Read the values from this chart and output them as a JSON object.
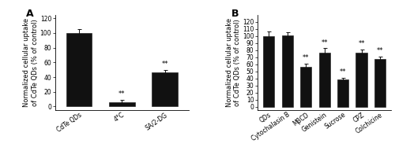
{
  "panel_A": {
    "categories": [
      "CdTe QDs",
      "4°C",
      "SA/2-DG"
    ],
    "values": [
      100,
      6,
      46
    ],
    "errors": [
      5,
      3,
      4
    ],
    "sig": [
      false,
      true,
      true
    ],
    "bar_color": "#111111",
    "ylabel": "Normalized cellular uptake\nof CdTe QDs (% of control)",
    "ylim": [
      -5,
      125
    ],
    "yticks": [
      0,
      20,
      40,
      60,
      80,
      100,
      120
    ],
    "label": "A"
  },
  "panel_B": {
    "categories": [
      "QDs",
      "Cytochalasin B",
      "MβCD",
      "Genistein",
      "Sucrose",
      "CPZ",
      "Colchicine"
    ],
    "values": [
      100,
      101,
      56,
      76,
      38,
      76,
      67
    ],
    "errors": [
      6,
      4,
      5,
      7,
      3,
      5,
      4
    ],
    "sig": [
      false,
      false,
      true,
      true,
      true,
      true,
      true
    ],
    "bar_color": "#111111",
    "ylabel": "Normalized cellular uptake\nof CdTe QDs (% of control)",
    "ylim": [
      -5,
      130
    ],
    "yticks": [
      0,
      10,
      20,
      30,
      40,
      50,
      60,
      70,
      80,
      90,
      100,
      110,
      120
    ],
    "label": "B"
  },
  "sig_text": "**",
  "sig_fontsize": 6,
  "tick_fontsize": 5.5,
  "ylabel_fontsize": 6,
  "label_fontsize": 9,
  "bar_width": 0.6,
  "background_color": "#ffffff",
  "edge_color": "#111111"
}
